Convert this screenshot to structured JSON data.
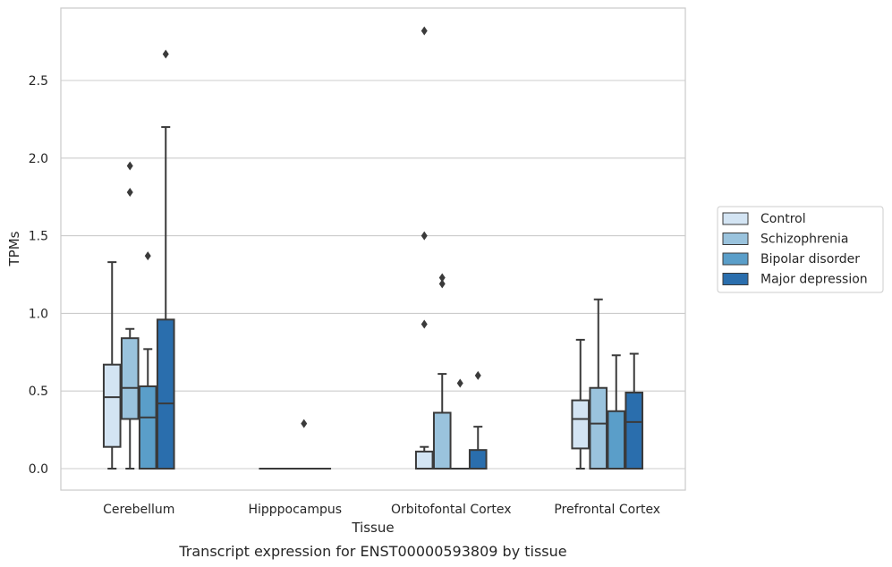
{
  "caption": "Transcript expression for ENST00000593809 by tissue",
  "chart_data": {
    "type": "boxplot",
    "title": "",
    "xlabel": "Tissue",
    "ylabel": "TPMs",
    "categories": [
      "Cerebellum",
      "Hipppocampus",
      "Orbitofontal Cortex",
      "Prefrontal Cortex"
    ],
    "ylim": [
      -0.135,
      2.95
    ],
    "yticks": [
      0.0,
      0.5,
      1.0,
      1.5,
      2.0,
      2.5
    ],
    "ytick_labels": [
      "0.0",
      "0.5",
      "1.0",
      "1.5",
      "2.0",
      "2.5"
    ],
    "grid": "horizontal",
    "legend_position": "center-right-outside",
    "series": [
      {
        "name": "Control",
        "color": "#d3e4f3",
        "boxes": [
          {
            "q1": 0.14,
            "median": 0.46,
            "q3": 0.67,
            "whislo": 0.0,
            "whishi": 1.33,
            "fliers": []
          },
          {
            "q1": 0.0,
            "median": 0.0,
            "q3": 0.0,
            "whislo": 0.0,
            "whishi": 0.0,
            "fliers": []
          },
          {
            "q1": 0.0,
            "median": 0.0,
            "q3": 0.11,
            "whislo": 0.0,
            "whishi": 0.14,
            "fliers": [
              0.93,
              1.5,
              2.82
            ]
          },
          {
            "q1": 0.13,
            "median": 0.32,
            "q3": 0.44,
            "whislo": 0.0,
            "whishi": 0.83,
            "fliers": []
          }
        ]
      },
      {
        "name": "Schizophrenia",
        "color": "#9ac3dd",
        "boxes": [
          {
            "q1": 0.32,
            "median": 0.52,
            "q3": 0.84,
            "whislo": 0.0,
            "whishi": 0.9,
            "fliers": [
              1.78,
              1.95
            ]
          },
          {
            "q1": 0.0,
            "median": 0.0,
            "q3": 0.0,
            "whislo": 0.0,
            "whishi": 0.0,
            "fliers": []
          },
          {
            "q1": 0.0,
            "median": 0.0,
            "q3": 0.36,
            "whislo": 0.0,
            "whishi": 0.61,
            "fliers": [
              1.19,
              1.23
            ]
          },
          {
            "q1": 0.0,
            "median": 0.29,
            "q3": 0.52,
            "whislo": 0.0,
            "whishi": 1.09,
            "fliers": []
          }
        ]
      },
      {
        "name": "Bipolar disorder",
        "color": "#5a9ec9",
        "boxes": [
          {
            "q1": 0.0,
            "median": 0.33,
            "q3": 0.53,
            "whislo": 0.0,
            "whishi": 0.77,
            "fliers": [
              1.37
            ]
          },
          {
            "q1": 0.0,
            "median": 0.0,
            "q3": 0.0,
            "whislo": 0.0,
            "whishi": 0.0,
            "fliers": [
              0.29
            ]
          },
          {
            "q1": 0.0,
            "median": 0.0,
            "q3": 0.0,
            "whislo": 0.0,
            "whishi": 0.0,
            "fliers": [
              0.55
            ]
          },
          {
            "q1": 0.0,
            "median": 0.0,
            "q3": 0.37,
            "whislo": 0.0,
            "whishi": 0.73,
            "fliers": []
          }
        ]
      },
      {
        "name": "Major depression",
        "color": "#2a6ead",
        "boxes": [
          {
            "q1": 0.0,
            "median": 0.42,
            "q3": 0.96,
            "whislo": 0.0,
            "whishi": 2.2,
            "fliers": [
              2.67
            ]
          },
          {
            "q1": 0.0,
            "median": 0.0,
            "q3": 0.0,
            "whislo": 0.0,
            "whishi": 0.0,
            "fliers": []
          },
          {
            "q1": 0.0,
            "median": 0.0,
            "q3": 0.12,
            "whislo": 0.0,
            "whishi": 0.27,
            "fliers": [
              0.6
            ]
          },
          {
            "q1": 0.0,
            "median": 0.3,
            "q3": 0.49,
            "whislo": 0.0,
            "whishi": 0.74,
            "fliers": []
          }
        ]
      }
    ]
  }
}
